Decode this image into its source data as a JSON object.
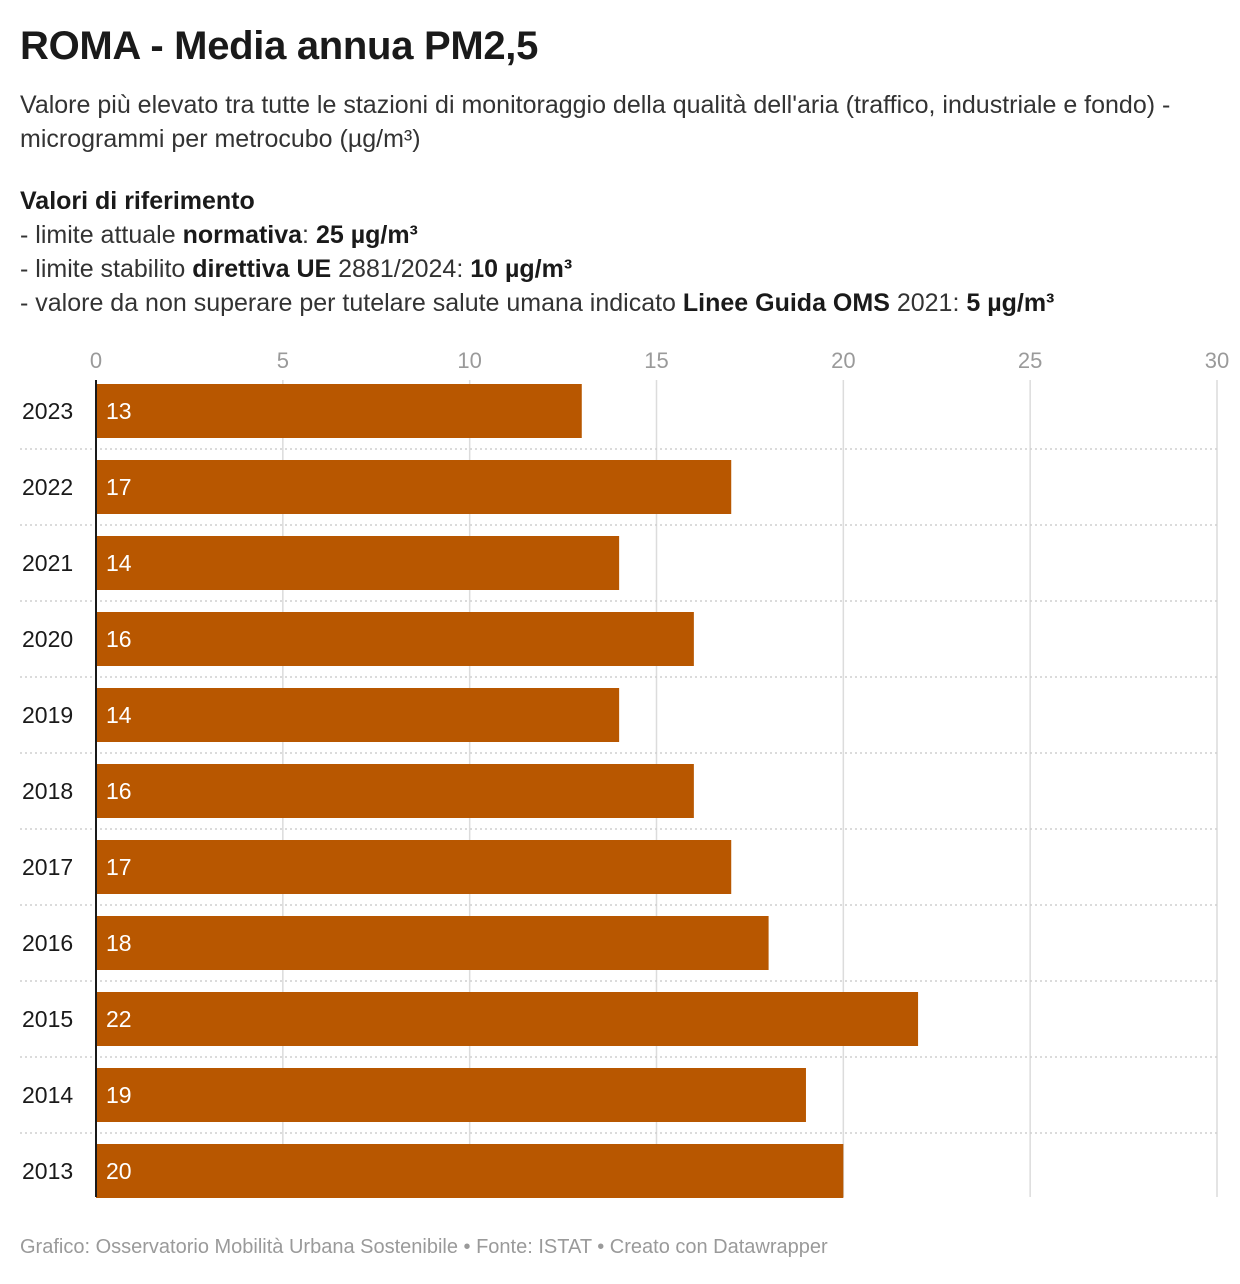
{
  "header": {
    "title": "ROMA - Media annua PM2,5",
    "subtitle": "Valore più elevato tra tutte le stazioni di monitoraggio della qualità dell'aria (traffico, industriale e fondo) - microgrammi per metrocubo (µg/m³)"
  },
  "reference": {
    "title": "Valori di riferimento",
    "line1": {
      "prefix": "- limite attuale ",
      "bold1": "normativa",
      "mid": ": ",
      "bold2": "25 µg/m³"
    },
    "line2": {
      "prefix": "- limite stabilito ",
      "bold1": "direttiva UE",
      "mid": " 2881/2024: ",
      "bold2": "10 µg/m³"
    },
    "line3": {
      "prefix": "- valore da non superare per tutelare salute umana indicato ",
      "bold1": "Linee Guida OMS",
      "mid": " 2021: ",
      "bold2": "5 µg/m³"
    }
  },
  "chart_data": {
    "type": "bar",
    "orientation": "horizontal",
    "categories": [
      "2023",
      "2022",
      "2021",
      "2020",
      "2019",
      "2018",
      "2017",
      "2016",
      "2015",
      "2014",
      "2013"
    ],
    "values": [
      13,
      17,
      14,
      16,
      14,
      16,
      17,
      18,
      22,
      19,
      20
    ],
    "value_labels": [
      "13",
      "17",
      "14",
      "16",
      "14",
      "16",
      "17",
      "18",
      "22",
      "19",
      "20"
    ],
    "x_ticks": [
      "0",
      "5",
      "10",
      "15",
      "20",
      "25",
      "30"
    ],
    "xlim": [
      0,
      30
    ],
    "grid": true,
    "bar_color": "#b85700",
    "title": "",
    "xlabel": "",
    "ylabel": ""
  },
  "footer": {
    "credit": "Grafico: Osservatorio Mobilità Urbana Sostenibile • Fonte: ISTAT • Creato con Datawrapper"
  }
}
